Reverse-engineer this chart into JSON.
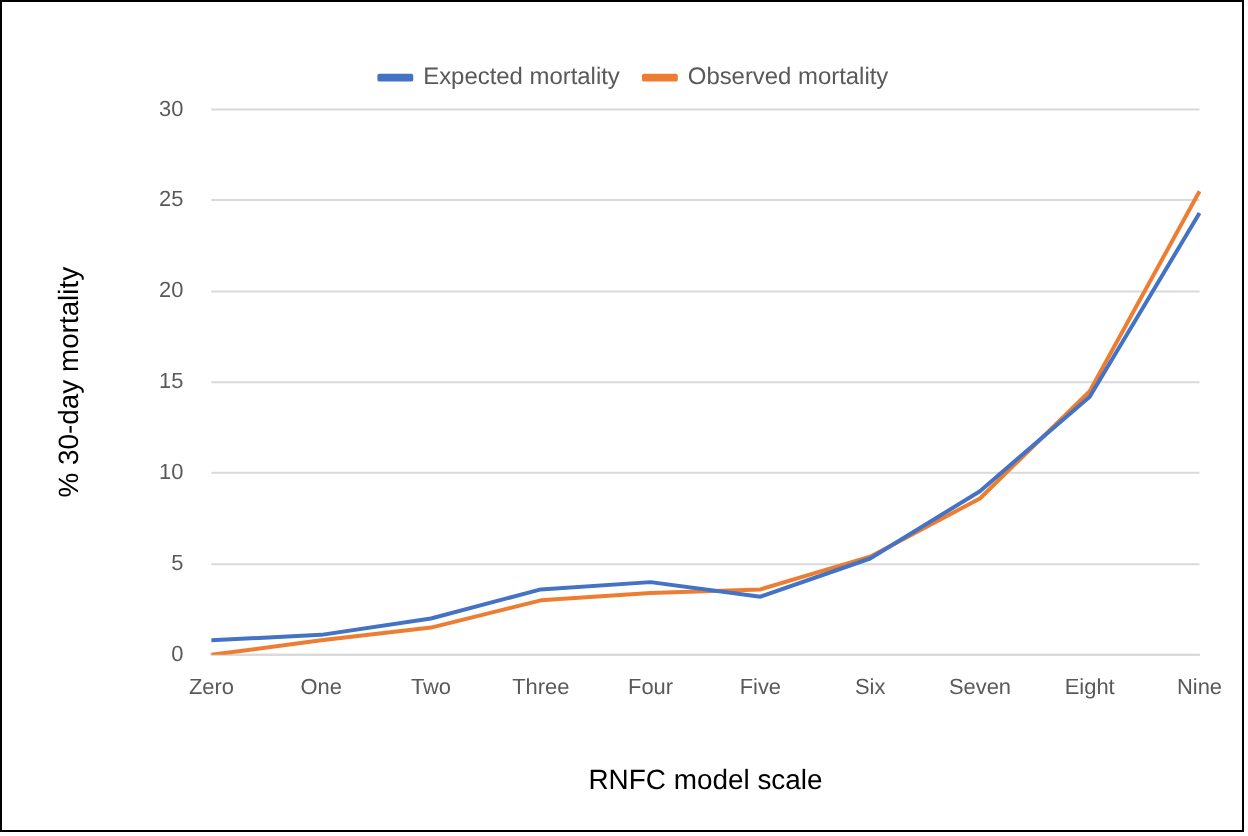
{
  "chart_data": {
    "type": "line",
    "xlabel": "RNFC model scale",
    "ylabel": "% 30-day mortality",
    "categories": [
      "Zero",
      "One",
      "Two",
      "Three",
      "Four",
      "Five",
      "Six",
      "Seven",
      "Eight",
      "Nine"
    ],
    "series": [
      {
        "name": "Expected mortality",
        "color": "#4472c4",
        "values": [
          0.8,
          1.1,
          2.0,
          3.6,
          4.0,
          3.2,
          5.3,
          9.0,
          14.2,
          24.3
        ]
      },
      {
        "name": "Observed mortality",
        "color": "#ed7d31",
        "values": [
          0,
          0.8,
          1.5,
          3.0,
          3.4,
          3.6,
          5.4,
          8.6,
          14.5,
          25.5
        ]
      }
    ],
    "ylim": [
      0,
      30
    ],
    "yticks": [
      0,
      5,
      10,
      15,
      20,
      25,
      30
    ],
    "grid": "y",
    "legend": "top",
    "marker": "none",
    "line_style": "solid"
  }
}
